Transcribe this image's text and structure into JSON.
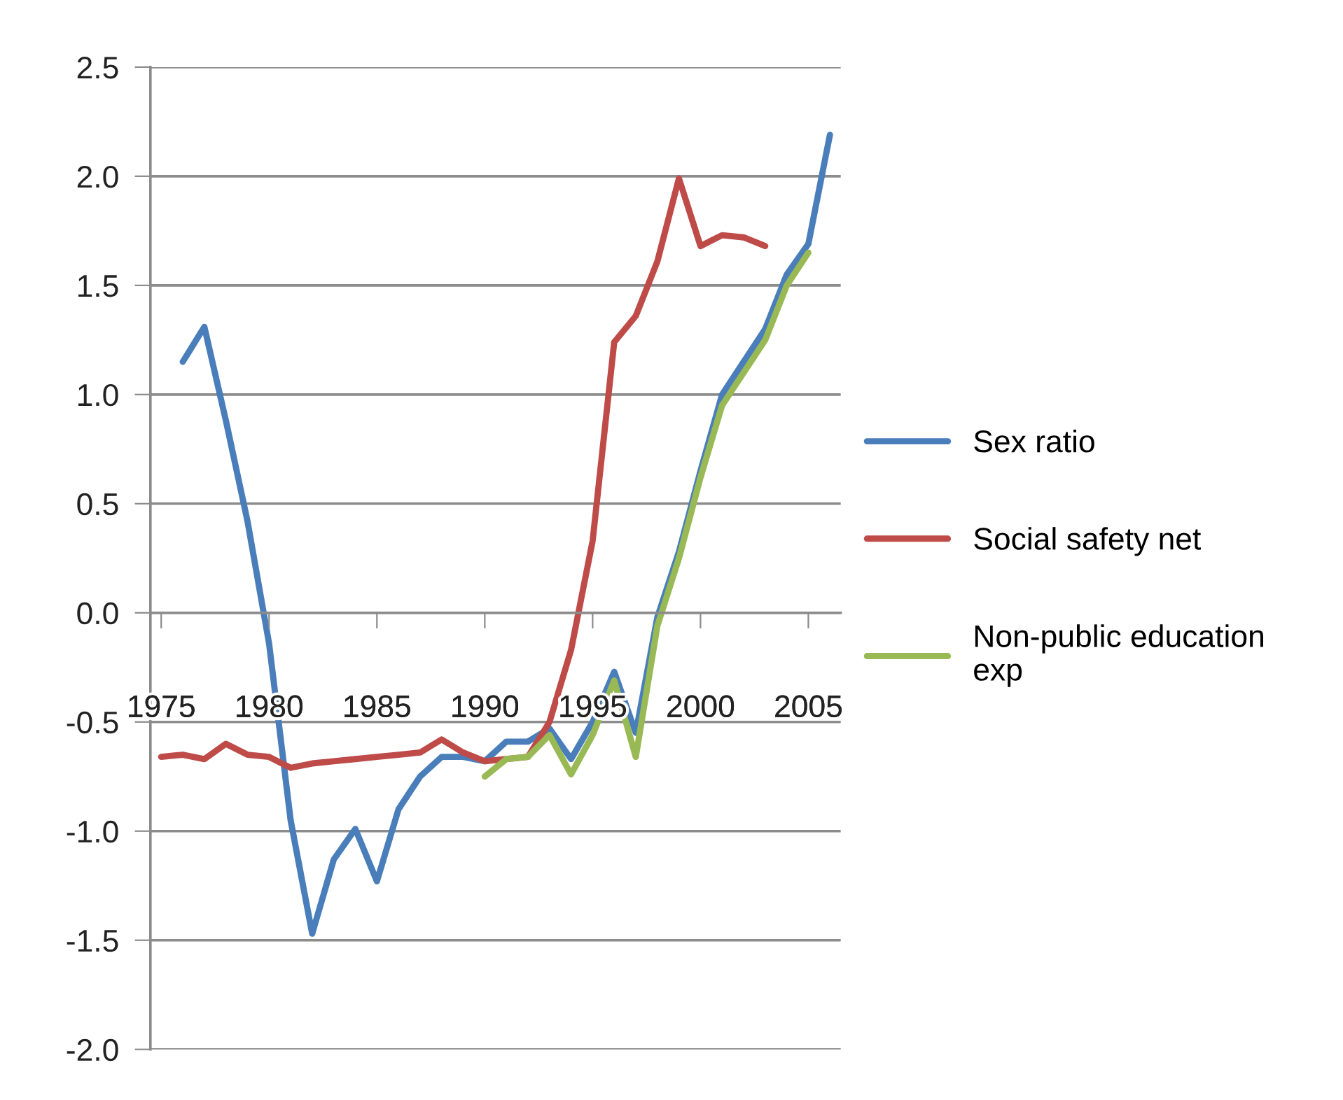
{
  "chart_data": {
    "type": "line",
    "x": [
      1975,
      1976,
      1977,
      1978,
      1979,
      1980,
      1981,
      1982,
      1983,
      1984,
      1985,
      1986,
      1987,
      1988,
      1989,
      1990,
      1991,
      1992,
      1993,
      1994,
      1995,
      1996,
      1997,
      1998,
      1999,
      2000,
      2001,
      2002,
      2003,
      2004,
      2005,
      2006
    ],
    "series": [
      {
        "name": "Sex ratio",
        "color": "#4a7ebb",
        "values": [
          null,
          1.15,
          1.31,
          0.88,
          0.42,
          -0.14,
          -0.95,
          -1.47,
          -1.13,
          -0.99,
          -1.23,
          -0.9,
          -0.75,
          -0.66,
          -0.66,
          -0.68,
          -0.59,
          -0.59,
          -0.53,
          -0.67,
          -0.5,
          -0.27,
          -0.55,
          -0.02,
          0.28,
          0.65,
          1.0,
          1.15,
          1.3,
          1.55,
          1.69,
          2.19
        ]
      },
      {
        "name": "Social safety net",
        "color": "#be4b48",
        "values": [
          -0.66,
          -0.65,
          -0.67,
          -0.6,
          -0.65,
          -0.66,
          -0.71,
          -0.69,
          -0.68,
          -0.67,
          -0.66,
          -0.65,
          -0.64,
          -0.58,
          -0.64,
          -0.68,
          -0.67,
          -0.66,
          -0.5,
          -0.17,
          0.33,
          1.24,
          1.36,
          1.61,
          1.99,
          1.68,
          1.73,
          1.72,
          1.68,
          null,
          null,
          null
        ]
      },
      {
        "name": "Non-public education\nexp",
        "color": "#98b954",
        "values": [
          null,
          null,
          null,
          null,
          null,
          null,
          null,
          null,
          null,
          null,
          null,
          null,
          null,
          null,
          null,
          -0.75,
          -0.67,
          -0.66,
          -0.56,
          -0.74,
          -0.56,
          -0.31,
          -0.66,
          -0.06,
          0.25,
          0.62,
          0.95,
          1.1,
          1.25,
          1.5,
          1.65,
          null
        ]
      }
    ],
    "xlim": [
      1974.5,
      2006.5
    ],
    "xticks": [
      1975,
      1980,
      1985,
      1990,
      1995,
      2000,
      2005
    ],
    "ylim": [
      -2.0,
      2.5
    ],
    "yticks": [
      {
        "value": -2.0,
        "label": "-2.0"
      },
      {
        "value": -1.5,
        "label": "-1.5"
      },
      {
        "value": -1.0,
        "label": "-1.0"
      },
      {
        "value": -0.5,
        "label": "-0.5"
      },
      {
        "value": 0.0,
        "label": "0.0"
      },
      {
        "value": 0.5,
        "label": "0.5"
      },
      {
        "value": 1.0,
        "label": "1.0"
      },
      {
        "value": 1.5,
        "label": "1.5"
      },
      {
        "value": 2.0,
        "label": "2.0"
      },
      {
        "value": 2.5,
        "label": "2.5"
      }
    ],
    "grid": "y",
    "legend": "right",
    "marker": "none",
    "line_style": "solid"
  }
}
